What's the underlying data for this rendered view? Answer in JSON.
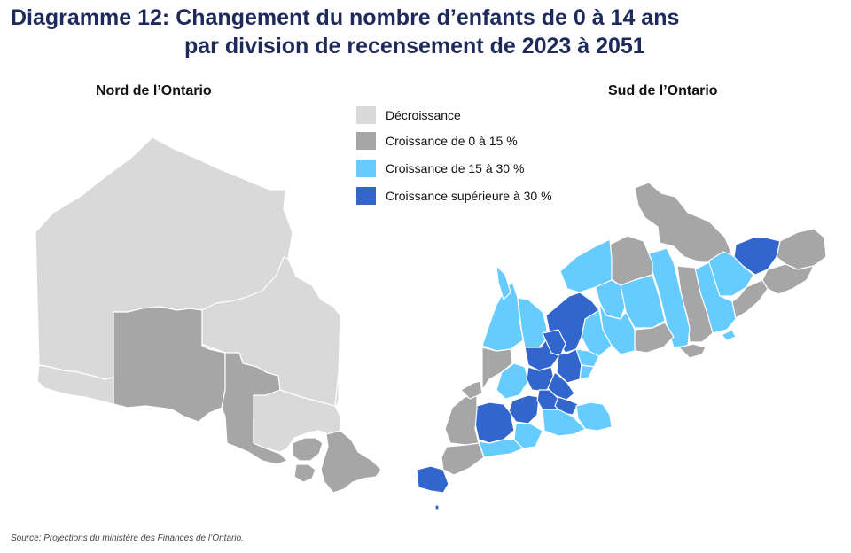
{
  "title": {
    "line1": "Diagramme 12: Changement du nombre d’enfants de 0 à 14 ans",
    "line2": "par division de recensement de 2023 à 2051"
  },
  "maps": {
    "north_label": "Nord de l’Ontario",
    "south_label": "Sud de l’Ontario"
  },
  "legend": [
    {
      "label": "Décroissance",
      "color": "#d9d9d9"
    },
    {
      "label": "Croissance de 0 à 15 %",
      "color": "#a6a6a6"
    },
    {
      "label": "Croissance de 15 à 30 %",
      "color": "#66ccff"
    },
    {
      "label": "Croissance supérieure à 30 %",
      "color": "#3366cc"
    }
  ],
  "source": "Source: Projections du ministère des Finances de l’Ontario."
}
